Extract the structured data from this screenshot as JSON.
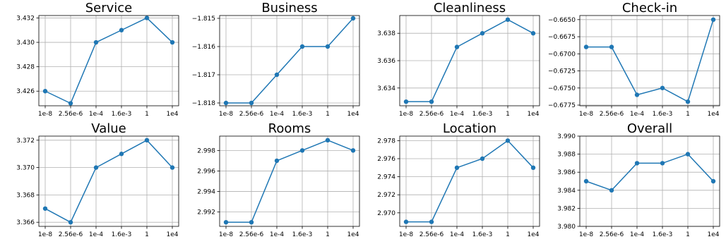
{
  "chart_data": [
    {
      "type": "line",
      "title": "Service",
      "categories": [
        "1e-8",
        "2.56e-6",
        "1e-4",
        "1.6e-3",
        "1",
        "1e4"
      ],
      "values": [
        3.426,
        3.425,
        3.43,
        3.431,
        3.432,
        3.43
      ],
      "ylim": [
        3.4248,
        3.4322
      ],
      "yticks": [
        3.426,
        3.428,
        3.43,
        3.432
      ],
      "ytick_labels": [
        "3.426",
        "3.428",
        "3.430",
        "3.432"
      ],
      "grid": true,
      "color": "#1f77b4"
    },
    {
      "type": "line",
      "title": "Business",
      "categories": [
        "1e-8",
        "2.56e-6",
        "1e-4",
        "1.6e-3",
        "1",
        "1e4"
      ],
      "values": [
        -1.818,
        -1.818,
        -1.817,
        -1.816,
        -1.816,
        -1.815
      ],
      "ylim": [
        -1.8181,
        -1.8149
      ],
      "yticks": [
        -1.818,
        -1.817,
        -1.816,
        -1.815
      ],
      "ytick_labels": [
        "−1.818",
        "−1.817",
        "−1.816",
        "−1.815"
      ],
      "grid": true,
      "color": "#1f77b4"
    },
    {
      "type": "line",
      "title": "Cleanliness",
      "categories": [
        "1e-8",
        "2.56e-6",
        "1e-4",
        "1.6e-3",
        "1",
        "1e4"
      ],
      "values": [
        3.633,
        3.633,
        3.637,
        3.638,
        3.639,
        3.638
      ],
      "ylim": [
        3.6327,
        3.6393
      ],
      "yticks": [
        3.634,
        3.636,
        3.638
      ],
      "ytick_labels": [
        "3.634",
        "3.636",
        "3.638"
      ],
      "grid": true,
      "color": "#1f77b4"
    },
    {
      "type": "line",
      "title": "Check-in",
      "categories": [
        "1e-8",
        "2.56e-6",
        "1e-4",
        "1.6e-3",
        "1",
        "1e4"
      ],
      "values": [
        -0.669,
        -0.669,
        -0.676,
        -0.675,
        -0.677,
        -0.665
      ],
      "ylim": [
        -0.6776,
        -0.6644
      ],
      "yticks": [
        -0.6775,
        -0.675,
        -0.6725,
        -0.67,
        -0.6675,
        -0.665
      ],
      "ytick_labels": [
        "−0.6775",
        "−0.6750",
        "−0.6725",
        "−0.6700",
        "−0.6675",
        "−0.6650"
      ],
      "grid": true,
      "color": "#1f77b4"
    },
    {
      "type": "line",
      "title": "Value",
      "categories": [
        "1e-8",
        "2.56e-6",
        "1e-4",
        "1.6e-3",
        "1",
        "1e4"
      ],
      "values": [
        3.367,
        3.366,
        3.37,
        3.371,
        3.372,
        3.37
      ],
      "ylim": [
        3.3657,
        3.3723
      ],
      "yticks": [
        3.366,
        3.368,
        3.37,
        3.372
      ],
      "ytick_labels": [
        "3.366",
        "3.368",
        "3.370",
        "3.372"
      ],
      "grid": true,
      "color": "#1f77b4"
    },
    {
      "type": "line",
      "title": "Rooms",
      "categories": [
        "1e-8",
        "2.56e-6",
        "1e-4",
        "1.6e-3",
        "1",
        "1e4"
      ],
      "values": [
        2.991,
        2.991,
        2.997,
        2.998,
        2.999,
        2.998
      ],
      "ylim": [
        2.9906,
        2.9994
      ],
      "yticks": [
        2.992,
        2.994,
        2.996,
        2.998
      ],
      "ytick_labels": [
        "2.992",
        "2.994",
        "2.996",
        "2.998"
      ],
      "grid": true,
      "color": "#1f77b4"
    },
    {
      "type": "line",
      "title": "Location",
      "categories": [
        "1e-8",
        "2.56e-6",
        "1e-4",
        "1.6e-3",
        "1",
        "1e4"
      ],
      "values": [
        2.969,
        2.969,
        2.975,
        2.976,
        2.978,
        2.975
      ],
      "ylim": [
        2.9685,
        2.9785
      ],
      "yticks": [
        2.97,
        2.972,
        2.974,
        2.976,
        2.978
      ],
      "ytick_labels": [
        "2.970",
        "2.972",
        "2.974",
        "2.976",
        "2.978"
      ],
      "grid": true,
      "color": "#1f77b4"
    },
    {
      "type": "line",
      "title": "Overall",
      "categories": [
        "1e-8",
        "2.56e-6",
        "1e-4",
        "1.6e-3",
        "1",
        "1e4"
      ],
      "values": [
        3.985,
        3.984,
        3.987,
        3.987,
        3.988,
        3.985
      ],
      "ylim": [
        3.98,
        3.99
      ],
      "yticks": [
        3.98,
        3.982,
        3.984,
        3.986,
        3.988,
        3.99
      ],
      "ytick_labels": [
        "3.980",
        "3.982",
        "3.984",
        "3.986",
        "3.988",
        "3.990"
      ],
      "grid": true,
      "color": "#1f77b4"
    }
  ]
}
